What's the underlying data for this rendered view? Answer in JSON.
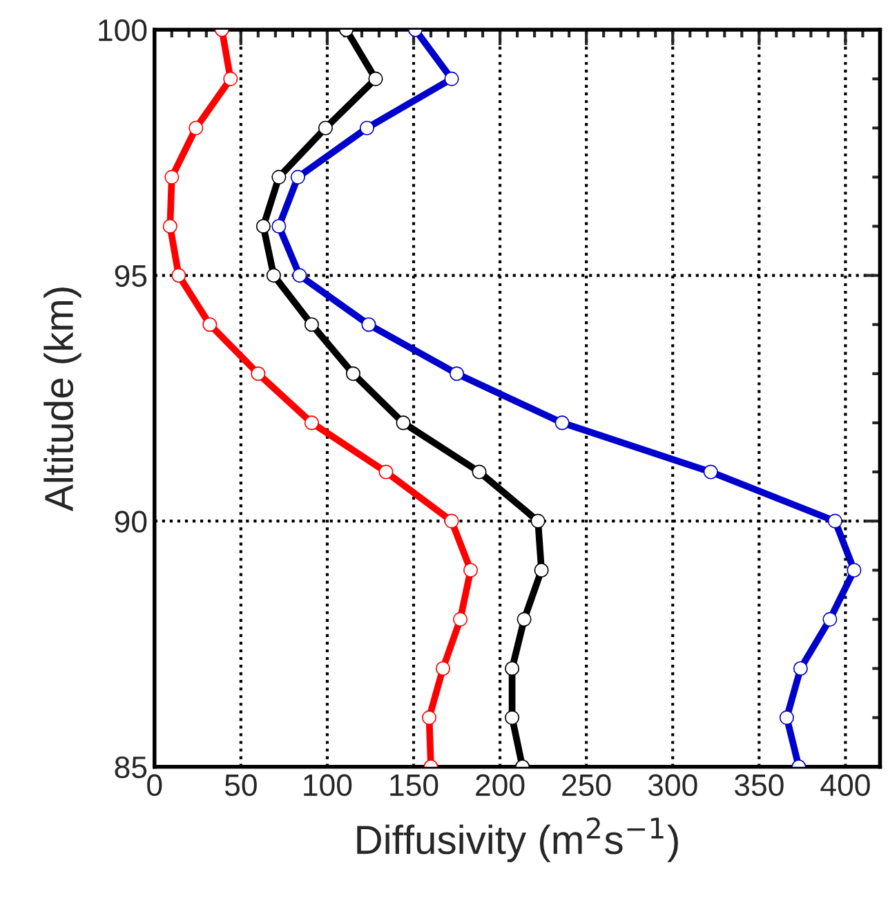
{
  "chart_data": {
    "type": "line",
    "xlabel": "Diffusivity (m$^{2}$s$^{−1}$)",
    "ylabel": "Altitude (km)",
    "xlim": [
      0,
      420
    ],
    "xticks": [
      0,
      50,
      100,
      150,
      200,
      250,
      300,
      350,
      400
    ],
    "ylim": [
      85,
      100
    ],
    "yticks": [
      85,
      90,
      95,
      100
    ],
    "grid": true,
    "marker": "circle",
    "line_style": "solid",
    "series": [
      {
        "color": "#ff0000",
        "x": [
          39,
          44,
          24,
          10,
          9,
          14,
          32,
          60,
          91,
          134,
          172,
          183,
          177,
          167,
          159,
          160
        ],
        "values": [
          100,
          99,
          98,
          97,
          96,
          95,
          94,
          93,
          92,
          91,
          90,
          89,
          88,
          87,
          86,
          85
        ]
      },
      {
        "color": "#000000",
        "x": [
          111,
          128,
          99,
          72,
          63,
          69,
          91,
          115,
          144,
          188,
          222,
          224,
          214,
          207,
          207,
          213
        ],
        "values": [
          100,
          99,
          98,
          97,
          96,
          95,
          94,
          93,
          92,
          91,
          90,
          89,
          88,
          87,
          86,
          85
        ]
      },
      {
        "color": "#0000cc",
        "x": [
          151,
          172,
          123,
          83,
          72,
          84,
          124,
          175,
          236,
          322,
          394,
          405,
          391,
          374,
          366,
          373
        ],
        "values": [
          100,
          99,
          98,
          97,
          96,
          95,
          94,
          93,
          92,
          91,
          90,
          89,
          88,
          87,
          86,
          85
        ]
      }
    ]
  }
}
